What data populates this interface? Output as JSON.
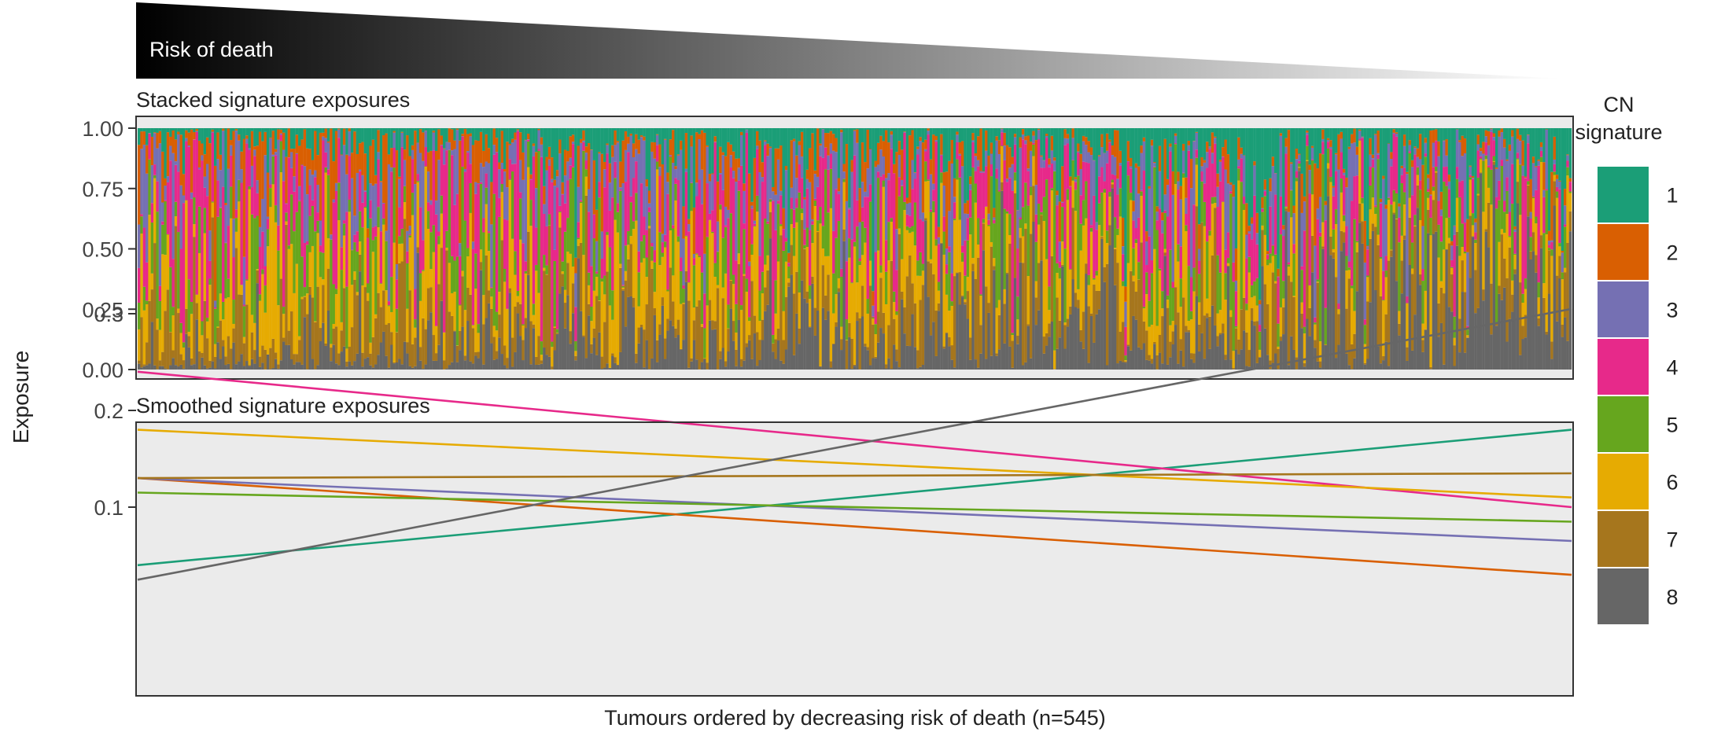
{
  "header": {
    "risk_label": "Risk of death"
  },
  "y_axis_label": "Exposure",
  "x_axis_label": "Tumours ordered by decreasing risk of death (n=545)",
  "legend": {
    "title_line1": "CN",
    "title_line2": "signature",
    "items": [
      {
        "label": "1",
        "color": "#1B9E77"
      },
      {
        "label": "2",
        "color": "#D95F02"
      },
      {
        "label": "3",
        "color": "#7570B3"
      },
      {
        "label": "4",
        "color": "#E7298A"
      },
      {
        "label": "5",
        "color": "#66A61E"
      },
      {
        "label": "6",
        "color": "#E6AB02"
      },
      {
        "label": "7",
        "color": "#A6761D"
      },
      {
        "label": "8",
        "color": "#666666"
      }
    ]
  },
  "chart_data": [
    {
      "type": "bar",
      "title": "Stacked signature exposures",
      "ylabel": "Exposure",
      "xlabel": "Tumours ordered by decreasing risk of death (n=545)",
      "ylim": [
        0,
        1
      ],
      "y_ticks": [
        "0.00",
        "0.25",
        "0.50",
        "0.75",
        "1.00"
      ],
      "n_samples": 545,
      "stacked": true,
      "stack_order_bottom_to_top": [
        "8",
        "7",
        "6",
        "5",
        "4",
        "3",
        "2",
        "1"
      ],
      "mean_exposure_first_sample": {
        "1": 0.04,
        "2": 0.13,
        "3": 0.13,
        "4": 0.24,
        "5": 0.115,
        "6": 0.18,
        "7": 0.13,
        "8": 0.025
      },
      "mean_exposure_last_sample": {
        "1": 0.18,
        "2": 0.03,
        "3": 0.065,
        "4": 0.1,
        "5": 0.085,
        "6": 0.11,
        "7": 0.135,
        "8": 0.305
      },
      "grid": false
    },
    {
      "type": "line",
      "title": "Smoothed signature exposures",
      "ylabel": "Exposure",
      "xlabel": "Tumours ordered by decreasing risk of death (n=545)",
      "ylim": [
        0.025,
        0.31
      ],
      "y_ticks": [
        "0.1",
        "0.2",
        "0.3"
      ],
      "x": [
        1,
        545
      ],
      "series": [
        {
          "name": "1",
          "values": [
            0.04,
            0.18
          ]
        },
        {
          "name": "2",
          "values": [
            0.13,
            0.03
          ]
        },
        {
          "name": "3",
          "values": [
            0.13,
            0.065
          ]
        },
        {
          "name": "4",
          "values": [
            0.24,
            0.1
          ]
        },
        {
          "name": "5",
          "values": [
            0.115,
            0.085
          ]
        },
        {
          "name": "6",
          "values": [
            0.18,
            0.11
          ]
        },
        {
          "name": "7",
          "values": [
            0.13,
            0.135
          ]
        },
        {
          "name": "8",
          "values": [
            0.025,
            0.305
          ]
        }
      ],
      "grid": false
    }
  ]
}
